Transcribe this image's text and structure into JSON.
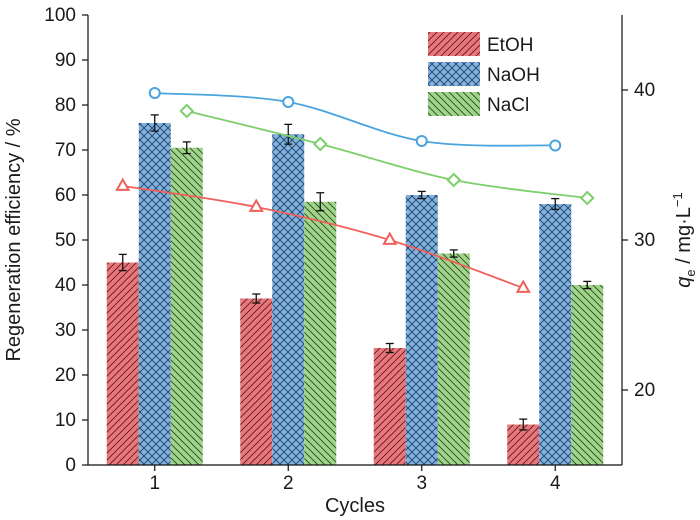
{
  "chart_data": {
    "type": "bar",
    "xlabel": "Cycles",
    "ylabel": "Regeneration efficiency / %",
    "y2label_main": "q",
    "y2label_sub": "e",
    "y2label_unit": " / mg·L",
    "y2label_sup": "−1",
    "categories": [
      "1",
      "2",
      "3",
      "4"
    ],
    "ylim": [
      0,
      100
    ],
    "yticks": [
      "0",
      "10",
      "20",
      "30",
      "40",
      "50",
      "60",
      "70",
      "80",
      "90",
      "100"
    ],
    "y2lim": [
      15,
      45
    ],
    "y2ticks": [
      "20",
      "30",
      "40"
    ],
    "legend_position": "top-right",
    "series": [
      {
        "name": "EtOH",
        "color": "#e8767a",
        "line_color": "#f0605a",
        "pattern": "diagonal-lines",
        "marker": "triangle",
        "values": [
          45,
          37,
          26,
          9
        ],
        "errors": [
          1.8,
          1.0,
          1.0,
          1.2
        ],
        "qe": [
          33.6,
          32.2,
          30.0,
          26.8
        ]
      },
      {
        "name": "NaOH",
        "color": "#7fb2e0",
        "line_color": "#4aa3df",
        "pattern": "crosshatch",
        "marker": "circle",
        "values": [
          76,
          73.5,
          60,
          58
        ],
        "errors": [
          1.8,
          2.2,
          0.8,
          1.2
        ],
        "qe": [
          39.8,
          39.2,
          36.6,
          36.3
        ]
      },
      {
        "name": "NaCl",
        "color": "#9fd48a",
        "line_color": "#7ccf6a",
        "pattern": "back-diagonal-lines",
        "marker": "diamond",
        "values": [
          70.5,
          58.5,
          47,
          40
        ],
        "errors": [
          1.3,
          2.0,
          0.8,
          0.8
        ],
        "qe": [
          38.6,
          36.4,
          34.0,
          32.8
        ]
      }
    ]
  }
}
